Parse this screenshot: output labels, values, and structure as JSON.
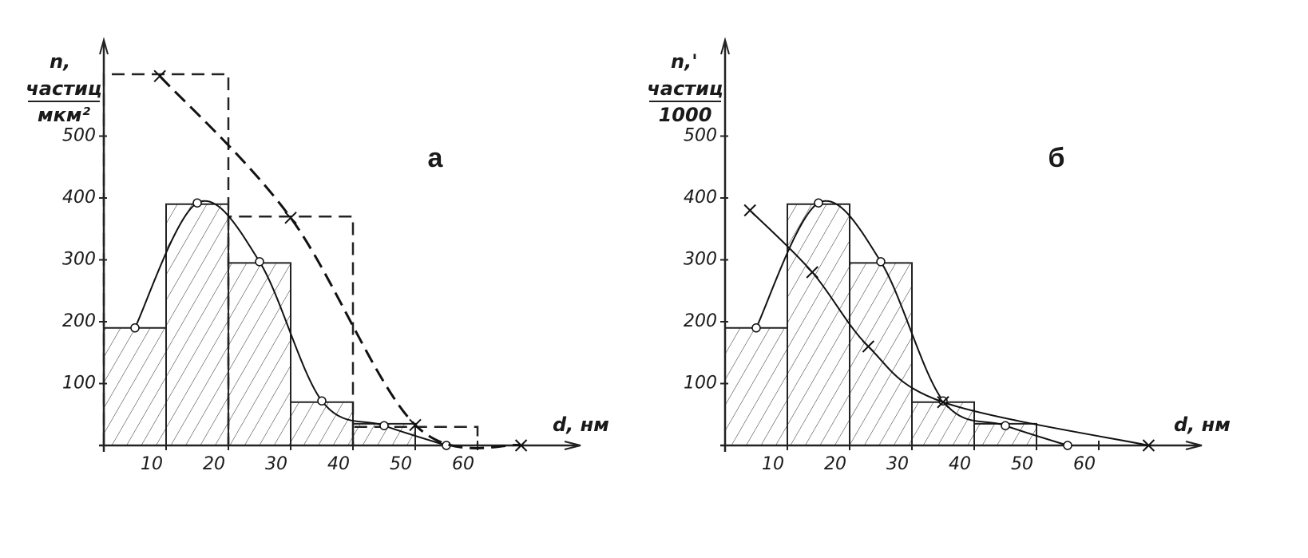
{
  "chart_data": [
    {
      "type": "histogram",
      "panel_label": "а",
      "ylabel": "n,",
      "ylabel_numerator": "частиц",
      "ylabel_denominator": "мкм²",
      "xlabel": "d, нм",
      "bins": [
        0,
        10,
        20,
        30,
        40,
        50
      ],
      "values": [
        190,
        390,
        295,
        70,
        35
      ],
      "hatch": true,
      "color": "#222222",
      "outline_histograms": [
        {
          "bins": [
            0,
            20,
            40,
            60
          ],
          "values": [
            600,
            370,
            30
          ],
          "dashed": true
        }
      ],
      "series": [
        {
          "marker": "circle",
          "dashed": false,
          "x": [
            5,
            15,
            25,
            35,
            45,
            55
          ],
          "values": [
            190,
            392,
            297,
            72,
            32,
            0
          ]
        },
        {
          "marker": "cross",
          "dashed": true,
          "x": [
            9,
            30,
            50,
            67
          ],
          "values": [
            597,
            368,
            33,
            0
          ]
        }
      ],
      "xlim": [
        0,
        75
      ],
      "ylim": [
        0,
        640
      ],
      "xticks": [
        10,
        20,
        30,
        40,
        50,
        60
      ],
      "yticks": [
        100,
        200,
        300,
        400,
        500
      ]
    },
    {
      "type": "histogram",
      "panel_label": "б",
      "ylabel": "n,'",
      "ylabel_numerator": "частиц",
      "ylabel_denominator": "1000",
      "xlabel": "d, нм",
      "bins": [
        0,
        10,
        20,
        30,
        40,
        50
      ],
      "values": [
        190,
        390,
        295,
        70,
        35
      ],
      "hatch": true,
      "color": "#222222",
      "series": [
        {
          "marker": "circle",
          "dashed": false,
          "x": [
            5,
            15,
            25,
            35,
            45,
            55
          ],
          "values": [
            190,
            392,
            297,
            72,
            32,
            0
          ]
        },
        {
          "marker": "cross",
          "dashed": false,
          "x": [
            4,
            14,
            23,
            35,
            68
          ],
          "values": [
            380,
            280,
            160,
            70,
            0
          ]
        }
      ],
      "xlim": [
        0,
        75
      ],
      "ylim": [
        0,
        640
      ],
      "xticks": [
        10,
        20,
        30,
        40,
        50,
        60
      ],
      "yticks": [
        100,
        200,
        300,
        400,
        500
      ]
    }
  ]
}
